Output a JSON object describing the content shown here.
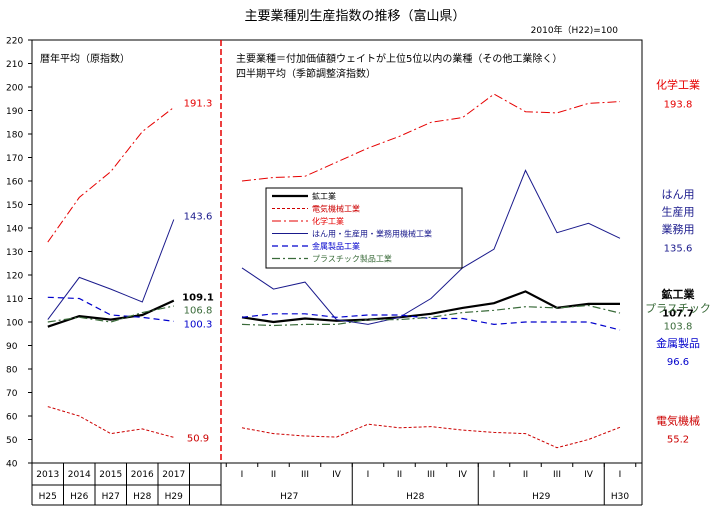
{
  "chart_data": {
    "type": "line",
    "title": "主要業種別生産指数の推移（富山県）",
    "base_note": "2010年（H22)=100",
    "ylim": [
      40,
      220
    ],
    "y_ticks": [
      40,
      50,
      60,
      70,
      80,
      90,
      100,
      110,
      120,
      130,
      140,
      150,
      160,
      170,
      180,
      190,
      200,
      210,
      220
    ],
    "grid": false,
    "left_panel": {
      "note": "暦年平均（原指数）",
      "categories": [
        "2013",
        "2014",
        "2015",
        "2016",
        "2017"
      ],
      "categories_sub": [
        "H25",
        "H26",
        "H27",
        "H28",
        "H29"
      ]
    },
    "right_panel": {
      "note_1": "主要業種＝付加価値額ウェイトが上位5位以内の業種（その他工業除く）",
      "note_2": "四半期平均（季節調整済指数）",
      "categories": [
        "I",
        "II",
        "III",
        "IV",
        "I",
        "II",
        "III",
        "IV",
        "I",
        "II",
        "III",
        "IV",
        "I"
      ],
      "year_groups": [
        {
          "label": "H27",
          "from": 0,
          "to": 3
        },
        {
          "label": "H28",
          "from": 4,
          "to": 7
        },
        {
          "label": "H29",
          "from": 8,
          "to": 11
        },
        {
          "label": "H30",
          "from": 12,
          "to": 12
        }
      ]
    },
    "series": [
      {
        "name": "鉱工業",
        "color": "#000000",
        "dash": "",
        "width": 2.2,
        "annual": [
          98,
          102.5,
          101,
          103,
          109.1
        ],
        "quarterly": [
          102,
          100,
          101.5,
          100.5,
          101,
          102,
          103.5,
          106,
          108,
          113,
          106,
          107.7,
          107.7
        ],
        "annual_label": "109.1",
        "right_label": [
          "鉱工業"
        ],
        "right_value": "107.7"
      },
      {
        "name": "電気機械工業",
        "color": "#cc0000",
        "dash": "3,2",
        "width": 1,
        "annual": [
          64,
          60,
          52.5,
          54.5,
          50.9
        ],
        "quarterly": [
          55,
          52.5,
          51.5,
          51,
          56.5,
          55,
          55.5,
          54,
          53,
          52.5,
          46.5,
          50,
          55.2
        ],
        "annual_label": "50.9",
        "right_label": [
          "電気機械"
        ],
        "right_value": "55.2"
      },
      {
        "name": "化学工業",
        "color": "#e60000",
        "dash": "9,3,2,3",
        "width": 1,
        "annual": [
          134,
          153,
          164,
          181,
          191.3
        ],
        "quarterly": [
          160,
          161.5,
          162,
          168,
          174,
          179,
          185,
          187,
          197,
          189.5,
          189,
          193,
          193.8
        ],
        "annual_label": "191.3",
        "right_label": [
          "化学工業"
        ],
        "right_value": "193.8"
      },
      {
        "name": "はん用・生産用・業務用機械工業",
        "color": "#1a1a8c",
        "dash": "",
        "width": 1,
        "annual": [
          101,
          119,
          114,
          108.5,
          143.6
        ],
        "quarterly": [
          123,
          114,
          117,
          101,
          99,
          102,
          110,
          123,
          131,
          164.5,
          138,
          142,
          135.6
        ],
        "annual_label": "143.6",
        "right_label": [
          "はん用",
          "生産用",
          "業務用"
        ],
        "right_value": "135.6"
      },
      {
        "name": "金属製品工業",
        "color": "#0000cc",
        "dash": "6,4",
        "width": 1.2,
        "annual": [
          110.5,
          110,
          103,
          102,
          100.3
        ],
        "quarterly": [
          102,
          103.5,
          103.5,
          102,
          103,
          103,
          101.5,
          101.5,
          99,
          100,
          100,
          100,
          96.6
        ],
        "annual_label": "100.3",
        "right_label": [
          "金属製品"
        ],
        "right_value": "96.6"
      },
      {
        "name": "プラスチック製品工業",
        "color": "#3a6b3a",
        "dash": "8,3,2,3",
        "width": 1.2,
        "annual": [
          100,
          102,
          100,
          104,
          106.8
        ],
        "quarterly": [
          99,
          98.5,
          99,
          99,
          101,
          101,
          102,
          104,
          105,
          106.5,
          106,
          107,
          103.8
        ],
        "annual_label": "106.8",
        "right_label": [
          "プラスチック"
        ],
        "right_value": "103.8"
      }
    ]
  }
}
